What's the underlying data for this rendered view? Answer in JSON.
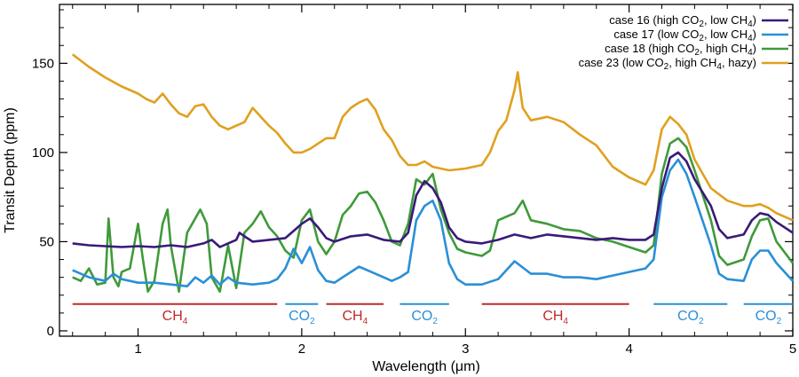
{
  "chart_data": {
    "type": "line",
    "xlabel": "Wavelength (μm)",
    "ylabel": "Transit Depth (ppm)",
    "xlim": [
      0.52,
      5.0
    ],
    "ylim": [
      -3,
      183
    ],
    "xticks": [
      1,
      2,
      3,
      4,
      5
    ],
    "yticks": [
      0,
      50,
      100,
      150
    ],
    "grid": false,
    "legend_position": "top-right",
    "series": [
      {
        "name": "case 16",
        "legend_prefix": "case 16 (high CO",
        "legend_mid": ", low CH",
        "legend_suffix": ")",
        "color": "#3a1a78",
        "points": [
          [
            0.6,
            49
          ],
          [
            0.7,
            48
          ],
          [
            0.8,
            47.5
          ],
          [
            0.9,
            47
          ],
          [
            1.0,
            47.5
          ],
          [
            1.1,
            47
          ],
          [
            1.2,
            48
          ],
          [
            1.3,
            47
          ],
          [
            1.4,
            49
          ],
          [
            1.45,
            51
          ],
          [
            1.5,
            47
          ],
          [
            1.55,
            49
          ],
          [
            1.6,
            51
          ],
          [
            1.62,
            55
          ],
          [
            1.65,
            53
          ],
          [
            1.7,
            50
          ],
          [
            1.8,
            51
          ],
          [
            1.9,
            52
          ],
          [
            1.95,
            56
          ],
          [
            2.0,
            60
          ],
          [
            2.05,
            63
          ],
          [
            2.1,
            58
          ],
          [
            2.15,
            52
          ],
          [
            2.2,
            50
          ],
          [
            2.3,
            53
          ],
          [
            2.4,
            54
          ],
          [
            2.5,
            51
          ],
          [
            2.6,
            50
          ],
          [
            2.65,
            55
          ],
          [
            2.7,
            76
          ],
          [
            2.75,
            84
          ],
          [
            2.8,
            80
          ],
          [
            2.85,
            72
          ],
          [
            2.9,
            58
          ],
          [
            2.95,
            52
          ],
          [
            3.0,
            50
          ],
          [
            3.1,
            49
          ],
          [
            3.2,
            51
          ],
          [
            3.3,
            54
          ],
          [
            3.4,
            52
          ],
          [
            3.5,
            54
          ],
          [
            3.6,
            53
          ],
          [
            3.7,
            52
          ],
          [
            3.8,
            51
          ],
          [
            3.9,
            52
          ],
          [
            4.0,
            51
          ],
          [
            4.1,
            51
          ],
          [
            4.15,
            54
          ],
          [
            4.2,
            80
          ],
          [
            4.25,
            97
          ],
          [
            4.3,
            100
          ],
          [
            4.35,
            95
          ],
          [
            4.4,
            85
          ],
          [
            4.5,
            70
          ],
          [
            4.55,
            57
          ],
          [
            4.6,
            52
          ],
          [
            4.7,
            54
          ],
          [
            4.75,
            62
          ],
          [
            4.8,
            66
          ],
          [
            4.85,
            65
          ],
          [
            4.9,
            61
          ],
          [
            5.0,
            55
          ]
        ]
      },
      {
        "name": "case 17",
        "legend_prefix": "case 17 (low CO",
        "legend_mid": ", low CH",
        "legend_suffix": ")",
        "color": "#2a8fd6",
        "points": [
          [
            0.6,
            34
          ],
          [
            0.7,
            30
          ],
          [
            0.8,
            28
          ],
          [
            0.85,
            32
          ],
          [
            0.9,
            29
          ],
          [
            1.0,
            27
          ],
          [
            1.1,
            27
          ],
          [
            1.2,
            26
          ],
          [
            1.3,
            25
          ],
          [
            1.35,
            30
          ],
          [
            1.4,
            27
          ],
          [
            1.45,
            31
          ],
          [
            1.5,
            26
          ],
          [
            1.55,
            30
          ],
          [
            1.6,
            27
          ],
          [
            1.7,
            26
          ],
          [
            1.8,
            27
          ],
          [
            1.85,
            29
          ],
          [
            1.9,
            35
          ],
          [
            1.95,
            46
          ],
          [
            2.0,
            38
          ],
          [
            2.05,
            47
          ],
          [
            2.1,
            34
          ],
          [
            2.15,
            28
          ],
          [
            2.2,
            27
          ],
          [
            2.25,
            30
          ],
          [
            2.3,
            33
          ],
          [
            2.35,
            36
          ],
          [
            2.4,
            34
          ],
          [
            2.5,
            30
          ],
          [
            2.55,
            28
          ],
          [
            2.6,
            30
          ],
          [
            2.65,
            33
          ],
          [
            2.7,
            62
          ],
          [
            2.75,
            70
          ],
          [
            2.8,
            73
          ],
          [
            2.85,
            62
          ],
          [
            2.9,
            38
          ],
          [
            2.95,
            29
          ],
          [
            3.0,
            26
          ],
          [
            3.1,
            26
          ],
          [
            3.2,
            29
          ],
          [
            3.3,
            39
          ],
          [
            3.4,
            32
          ],
          [
            3.5,
            32
          ],
          [
            3.6,
            30
          ],
          [
            3.7,
            30
          ],
          [
            3.8,
            29
          ],
          [
            3.9,
            31
          ],
          [
            4.0,
            33
          ],
          [
            4.1,
            35
          ],
          [
            4.15,
            40
          ],
          [
            4.2,
            75
          ],
          [
            4.25,
            90
          ],
          [
            4.3,
            96
          ],
          [
            4.35,
            88
          ],
          [
            4.4,
            75
          ],
          [
            4.5,
            48
          ],
          [
            4.55,
            32
          ],
          [
            4.6,
            29
          ],
          [
            4.7,
            28
          ],
          [
            4.75,
            40
          ],
          [
            4.8,
            45
          ],
          [
            4.85,
            45
          ],
          [
            4.9,
            38
          ],
          [
            5.0,
            28
          ]
        ]
      },
      {
        "name": "case 18",
        "legend_prefix": "case 18 (high CO",
        "legend_mid": ", high CH",
        "legend_suffix": ")",
        "color": "#3f9a3a",
        "points": [
          [
            0.6,
            30
          ],
          [
            0.65,
            28
          ],
          [
            0.7,
            35
          ],
          [
            0.75,
            26
          ],
          [
            0.8,
            27
          ],
          [
            0.82,
            63
          ],
          [
            0.85,
            30
          ],
          [
            0.88,
            25
          ],
          [
            0.9,
            33
          ],
          [
            0.95,
            35
          ],
          [
            1.0,
            60
          ],
          [
            1.03,
            40
          ],
          [
            1.06,
            22
          ],
          [
            1.1,
            28
          ],
          [
            1.15,
            60
          ],
          [
            1.18,
            68
          ],
          [
            1.2,
            48
          ],
          [
            1.25,
            22
          ],
          [
            1.3,
            55
          ],
          [
            1.38,
            68
          ],
          [
            1.42,
            60
          ],
          [
            1.45,
            30
          ],
          [
            1.5,
            22
          ],
          [
            1.55,
            48
          ],
          [
            1.6,
            24
          ],
          [
            1.65,
            55
          ],
          [
            1.7,
            60
          ],
          [
            1.75,
            67
          ],
          [
            1.8,
            58
          ],
          [
            1.85,
            53
          ],
          [
            1.9,
            45
          ],
          [
            1.95,
            41
          ],
          [
            2.0,
            62
          ],
          [
            2.05,
            68
          ],
          [
            2.1,
            50
          ],
          [
            2.15,
            43
          ],
          [
            2.2,
            50
          ],
          [
            2.25,
            65
          ],
          [
            2.3,
            70
          ],
          [
            2.35,
            77
          ],
          [
            2.4,
            78
          ],
          [
            2.45,
            72
          ],
          [
            2.5,
            62
          ],
          [
            2.55,
            50
          ],
          [
            2.6,
            48
          ],
          [
            2.65,
            60
          ],
          [
            2.7,
            85
          ],
          [
            2.75,
            82
          ],
          [
            2.8,
            88
          ],
          [
            2.85,
            68
          ],
          [
            2.9,
            55
          ],
          [
            2.95,
            46
          ],
          [
            3.0,
            44
          ],
          [
            3.1,
            42
          ],
          [
            3.15,
            45
          ],
          [
            3.2,
            62
          ],
          [
            3.3,
            66
          ],
          [
            3.35,
            73
          ],
          [
            3.4,
            62
          ],
          [
            3.5,
            60
          ],
          [
            3.6,
            57
          ],
          [
            3.7,
            56
          ],
          [
            3.8,
            52
          ],
          [
            3.9,
            50
          ],
          [
            4.0,
            47
          ],
          [
            4.1,
            44
          ],
          [
            4.15,
            48
          ],
          [
            4.2,
            88
          ],
          [
            4.25,
            105
          ],
          [
            4.3,
            108
          ],
          [
            4.35,
            103
          ],
          [
            4.4,
            90
          ],
          [
            4.5,
            62
          ],
          [
            4.55,
            42
          ],
          [
            4.6,
            37
          ],
          [
            4.7,
            40
          ],
          [
            4.75,
            53
          ],
          [
            4.8,
            62
          ],
          [
            4.85,
            63
          ],
          [
            4.9,
            50
          ],
          [
            5.0,
            38
          ]
        ]
      },
      {
        "name": "case 23",
        "legend_prefix": "case 23 (low CO",
        "legend_mid": ",  high CH",
        "legend_suffix": ", hazy)",
        "color": "#e0a020",
        "points": [
          [
            0.6,
            155
          ],
          [
            0.7,
            148
          ],
          [
            0.8,
            142
          ],
          [
            0.9,
            137
          ],
          [
            1.0,
            133
          ],
          [
            1.05,
            130
          ],
          [
            1.1,
            128
          ],
          [
            1.15,
            133
          ],
          [
            1.2,
            127
          ],
          [
            1.25,
            122
          ],
          [
            1.3,
            120
          ],
          [
            1.35,
            126
          ],
          [
            1.4,
            127
          ],
          [
            1.45,
            120
          ],
          [
            1.5,
            115
          ],
          [
            1.55,
            113
          ],
          [
            1.6,
            115
          ],
          [
            1.65,
            117
          ],
          [
            1.7,
            125
          ],
          [
            1.75,
            120
          ],
          [
            1.8,
            115
          ],
          [
            1.85,
            111
          ],
          [
            1.9,
            105
          ],
          [
            1.95,
            100
          ],
          [
            2.0,
            100
          ],
          [
            2.05,
            102
          ],
          [
            2.1,
            105
          ],
          [
            2.15,
            108
          ],
          [
            2.2,
            108
          ],
          [
            2.25,
            120
          ],
          [
            2.3,
            125
          ],
          [
            2.35,
            128
          ],
          [
            2.4,
            130
          ],
          [
            2.45,
            124
          ],
          [
            2.5,
            113
          ],
          [
            2.55,
            107
          ],
          [
            2.6,
            98
          ],
          [
            2.65,
            93
          ],
          [
            2.7,
            93
          ],
          [
            2.75,
            95
          ],
          [
            2.8,
            92
          ],
          [
            2.9,
            90
          ],
          [
            3.0,
            91
          ],
          [
            3.1,
            93
          ],
          [
            3.15,
            100
          ],
          [
            3.2,
            112
          ],
          [
            3.25,
            118
          ],
          [
            3.3,
            135
          ],
          [
            3.32,
            145
          ],
          [
            3.35,
            125
          ],
          [
            3.4,
            118
          ],
          [
            3.5,
            120
          ],
          [
            3.6,
            117
          ],
          [
            3.7,
            110
          ],
          [
            3.8,
            104
          ],
          [
            3.9,
            92
          ],
          [
            4.0,
            86
          ],
          [
            4.1,
            82
          ],
          [
            4.15,
            90
          ],
          [
            4.2,
            113
          ],
          [
            4.25,
            120
          ],
          [
            4.3,
            116
          ],
          [
            4.35,
            110
          ],
          [
            4.4,
            96
          ],
          [
            4.5,
            80
          ],
          [
            4.6,
            73
          ],
          [
            4.7,
            70
          ],
          [
            4.75,
            70
          ],
          [
            4.8,
            71
          ],
          [
            4.85,
            69
          ],
          [
            4.9,
            66
          ],
          [
            5.0,
            62
          ]
        ]
      }
    ],
    "bands": [
      {
        "molecule": "CH",
        "sub": "4",
        "x0": 0.6,
        "x1": 1.85,
        "color": "#c0282a"
      },
      {
        "molecule": "CO",
        "sub": "2",
        "x0": 1.9,
        "x1": 2.1,
        "color": "#2a8fd6"
      },
      {
        "molecule": "CH",
        "sub": "4",
        "x0": 2.15,
        "x1": 2.5,
        "color": "#c0282a"
      },
      {
        "molecule": "CO",
        "sub": "2",
        "x0": 2.6,
        "x1": 2.9,
        "color": "#2a8fd6"
      },
      {
        "molecule": "CH",
        "sub": "4",
        "x0": 3.1,
        "x1": 4.0,
        "color": "#c0282a"
      },
      {
        "molecule": "CO",
        "sub": "2",
        "x0": 4.15,
        "x1": 4.6,
        "color": "#2a8fd6"
      },
      {
        "molecule": "CO",
        "sub": "2",
        "x0": 4.7,
        "x1": 5.0,
        "color": "#2a8fd6"
      }
    ],
    "band_level": 15,
    "legend_sub_co": "2",
    "legend_sub_ch": "4"
  }
}
